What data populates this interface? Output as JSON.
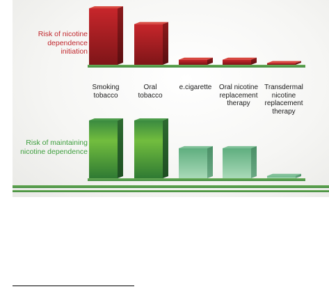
{
  "chart_data": {
    "type": "bar",
    "categories": [
      "Smoking\ntobacco",
      "Oral\ntobacco",
      "e.cigarette",
      "Oral nicotine\nreplacement\ntherapy",
      "Transdermal\nnicotine\nreplacement\ntherapy"
    ],
    "series": [
      {
        "name": "Risk of nicotine\ndependence\ninitiation",
        "values": [
          100,
          72,
          9,
          9,
          3
        ]
      },
      {
        "name": "Risk of maintaining\nnicotine dependence",
        "values": [
          100,
          100,
          52,
          52,
          4
        ]
      }
    ],
    "ylim": [
      0,
      100
    ],
    "grid": false,
    "colors": {
      "top_series": "#c0272d",
      "bottom_series": "#3d9e3d",
      "baseline": "#4f9a4a"
    }
  }
}
